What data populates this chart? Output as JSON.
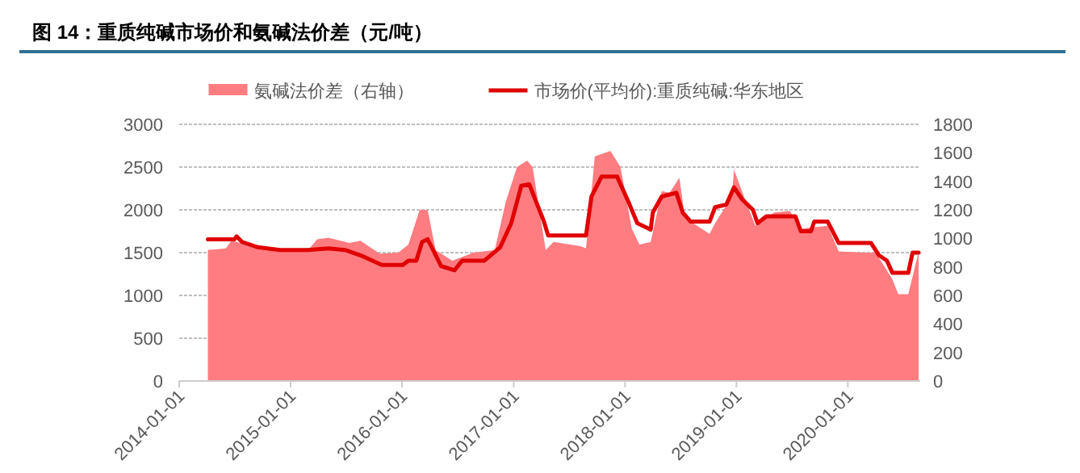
{
  "chart_data": {
    "type": "line",
    "title": "图 14：重质纯碱市场价和氨碱法价差（元/吨）",
    "xlim": [
      "2014-01-01",
      "2020-08-25"
    ],
    "xticks": [
      "2014-01-01",
      "2015-01-01",
      "2016-01-01",
      "2017-01-01",
      "2018-01-01",
      "2019-01-01",
      "2020-01-01"
    ],
    "ylim": [
      0,
      3000
    ],
    "yticks": [
      0,
      500,
      1000,
      1500,
      2000,
      2500,
      3000
    ],
    "y2lim": [
      0,
      1800
    ],
    "y2ticks": [
      0,
      200,
      400,
      600,
      800,
      1000,
      1200,
      1400,
      1600,
      1800
    ],
    "grid": "y",
    "legend": "top",
    "line_style": "solid",
    "marker": "none",
    "series": [
      {
        "name": "氨碱法价差（右轴）",
        "type": "area",
        "axis": "y2",
        "color": "#ff7c80",
        "x": [
          "2014-04-05",
          "2014-06-03",
          "2014-06-21",
          "2014-09-16",
          "2014-11-28",
          "2015-02-25",
          "2015-03-29",
          "2015-05-05",
          "2015-07-13",
          "2015-08-18",
          "2015-10-20",
          "2015-12-20",
          "2016-01-22",
          "2016-02-28",
          "2016-03-25",
          "2016-04-20",
          "2016-06-14",
          "2016-08-22",
          "2016-10-31",
          "2016-12-06",
          "2017-01-12",
          "2017-02-14",
          "2017-03-04",
          "2017-04-16",
          "2017-05-12",
          "2017-08-08",
          "2017-08-26",
          "2017-09-24",
          "2017-11-14",
          "2017-12-17",
          "2018-01-23",
          "2018-02-17",
          "2018-03-26",
          "2018-05-01",
          "2018-05-27",
          "2018-06-28",
          "2018-07-16",
          "2018-10-05",
          "2018-10-23",
          "2018-12-17",
          "2018-12-24",
          "2019-01-19",
          "2019-03-04",
          "2019-05-05",
          "2019-06-25",
          "2019-07-31",
          "2019-10-27",
          "2019-12-02",
          "2020-02-28",
          "2020-04-01",
          "2020-05-26",
          "2020-06-14",
          "2020-07-17",
          "2020-08-15",
          "2020-08-20"
        ],
        "values": [
          919,
          930,
          983,
          938,
          911,
          911,
          994,
          1005,
          968,
          983,
          893,
          900,
          956,
          1200,
          1200,
          919,
          844,
          900,
          919,
          1256,
          1500,
          1545,
          1500,
          919,
          975,
          945,
          930,
          1575,
          1613,
          1500,
          1069,
          956,
          975,
          1331,
          1320,
          1425,
          1144,
          1031,
          1106,
          1294,
          1481,
          1331,
          1088,
          1181,
          1193,
          1069,
          1088,
          908,
          900,
          900,
          713,
          608,
          608,
          863,
          919
        ]
      },
      {
        "name": "市场价(平均价):重质纯碱:华东地区",
        "type": "line",
        "color": "#e00000",
        "x": [
          "2014-04-05",
          "2014-07-01",
          "2014-07-08",
          "2014-07-26",
          "2014-09-16",
          "2014-11-28",
          "2015-02-25",
          "2015-05-05",
          "2015-06-28",
          "2015-08-18",
          "2015-10-27",
          "2016-01-04",
          "2016-01-22",
          "2016-02-17",
          "2016-03-07",
          "2016-03-25",
          "2016-04-12",
          "2016-05-08",
          "2016-06-21",
          "2016-07-16",
          "2016-09-27",
          "2016-11-18",
          "2016-12-24",
          "2017-01-26",
          "2017-02-21",
          "2017-04-09",
          "2017-04-24",
          "2017-08-08",
          "2017-08-26",
          "2017-09-13",
          "2017-10-16",
          "2017-12-06",
          "2018-01-12",
          "2018-02-10",
          "2018-03-26",
          "2018-04-02",
          "2018-05-01",
          "2018-06-18",
          "2018-07-09",
          "2018-08-04",
          "2018-10-05",
          "2018-10-23",
          "2018-11-29",
          "2018-12-24",
          "2019-01-19",
          "2019-02-24",
          "2019-03-11",
          "2019-04-09",
          "2019-07-13",
          "2019-07-31",
          "2019-09-02",
          "2019-09-13",
          "2019-10-27",
          "2019-12-02",
          "2020-03-17",
          "2020-04-12",
          "2020-05-08",
          "2020-05-26",
          "2020-07-17",
          "2020-07-31",
          "2020-08-20"
        ],
        "values": [
          1656,
          1656,
          1690,
          1625,
          1563,
          1531,
          1531,
          1550,
          1531,
          1469,
          1356,
          1356,
          1406,
          1406,
          1625,
          1656,
          1531,
          1344,
          1294,
          1406,
          1406,
          1563,
          1844,
          2281,
          2300,
          1875,
          1700,
          1700,
          1700,
          2156,
          2388,
          2388,
          2094,
          1844,
          1769,
          1969,
          2156,
          2200,
          1969,
          1863,
          1863,
          2031,
          2063,
          2263,
          2125,
          2000,
          1844,
          1925,
          1925,
          1750,
          1750,
          1863,
          1863,
          1613,
          1613,
          1469,
          1406,
          1263,
          1263,
          1500,
          1500
        ]
      }
    ]
  }
}
